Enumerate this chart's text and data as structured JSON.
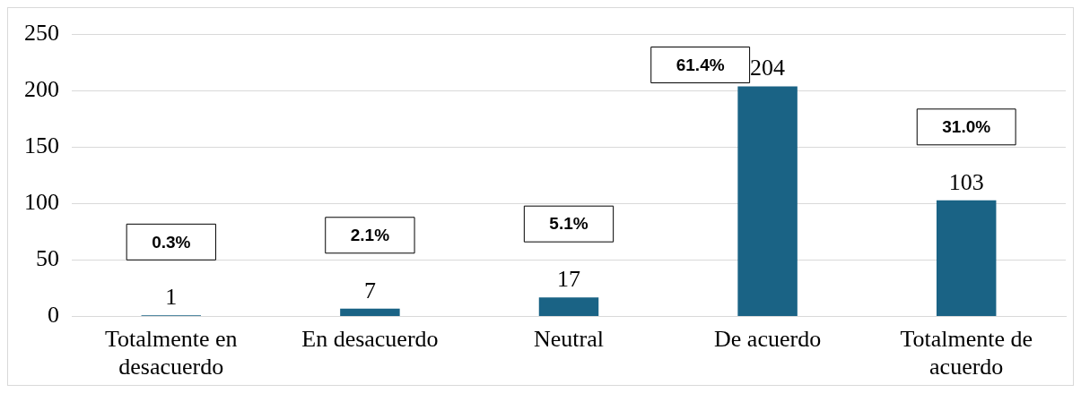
{
  "chart_data": {
    "type": "bar",
    "categories": [
      "Totalmente en desacuerdo",
      "En desacuerdo",
      "Neutral",
      "De acuerdo",
      "Totalmente de acuerdo"
    ],
    "values": [
      1,
      7,
      17,
      204,
      103
    ],
    "color": "#1a6385",
    "ylim": [
      0,
      250
    ],
    "yticks": [
      0,
      50,
      100,
      150,
      200,
      250
    ],
    "grid": "y",
    "legend": false,
    "data_labels": true,
    "annotations": [
      "0.3%",
      "2.1%",
      "5.1%",
      "61.4%",
      "31.0%"
    ]
  }
}
